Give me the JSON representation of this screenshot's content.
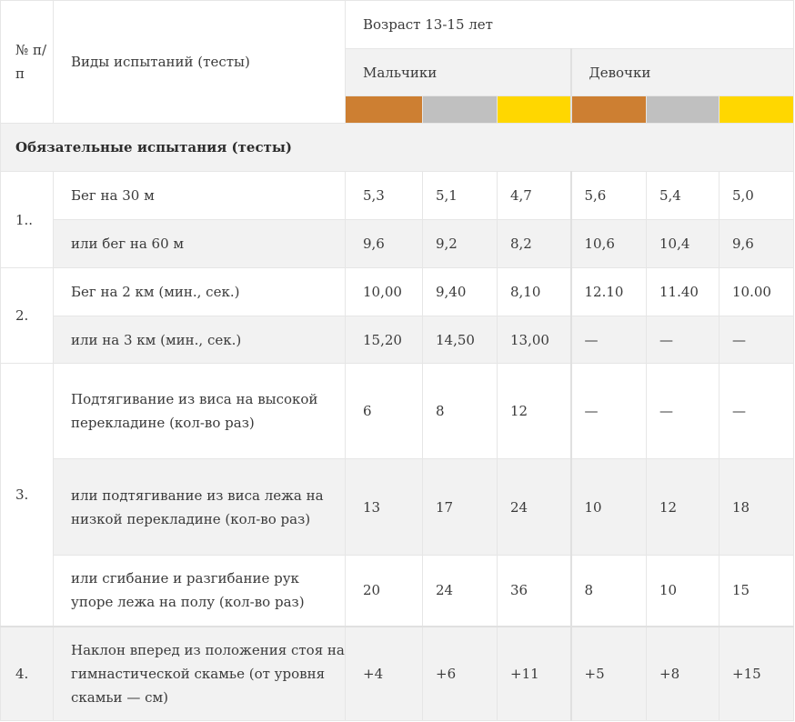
{
  "header": {
    "num_label": "№ п/п",
    "test_label": "Виды испытаний (тесты)",
    "age_label": "Возраст 13-15 лет",
    "boys_label": "Мальчики",
    "girls_label": "Девочки"
  },
  "medal_colors": [
    "#cd7f32",
    "#c0c0c0",
    "#ffd700",
    "#cd7f32",
    "#c0c0c0",
    "#ffd700"
  ],
  "section_title": "Обязательные испытания (тесты)",
  "groups": [
    {
      "number": "1..",
      "rows": [
        {
          "test": "Бег на 30 м",
          "values": [
            "5,3",
            "5,1",
            "4,7",
            "5,6",
            "5,4",
            "5,0"
          ]
        },
        {
          "test": "или бег на 60 м",
          "values": [
            "9,6",
            "9,2",
            "8,2",
            "10,6",
            "10,4",
            "9,6"
          ]
        }
      ]
    },
    {
      "number": "2.",
      "rows": [
        {
          "test": "Бег на 2 км (мин., сек.)",
          "values": [
            "10,00",
            "9,40",
            "8,10",
            "12.10",
            "11.40",
            "10.00"
          ]
        },
        {
          "test": "или на 3 км (мин., сек.)",
          "values": [
            "15,20",
            "14,50",
            "13,00",
            "—",
            "—",
            "—"
          ]
        }
      ]
    },
    {
      "number": "3.",
      "rows": [
        {
          "test": "Подтягивание из виса на высокой перекладине (кол-во раз)",
          "values": [
            "6",
            "8",
            "12",
            "—",
            "—",
            "—"
          ]
        },
        {
          "test": "или подтягивание из виса лежа на низкой перекладине (кол-во раз)",
          "values": [
            "13",
            "17",
            "24",
            "10",
            "12",
            "18"
          ]
        },
        {
          "test": "или сгибание и разгибание рук упоре лежа на полу (кол-во раз)",
          "values": [
            "20",
            "24",
            "36",
            "8",
            "10",
            "15"
          ]
        }
      ]
    },
    {
      "number": "4.",
      "rows": [
        {
          "test": "Наклон вперед из положения стоя на гимнастической скамье (от уровня скамьи — см)",
          "values": [
            "+4",
            "+6",
            "+11",
            "+5",
            "+8",
            "+15"
          ]
        }
      ]
    }
  ]
}
